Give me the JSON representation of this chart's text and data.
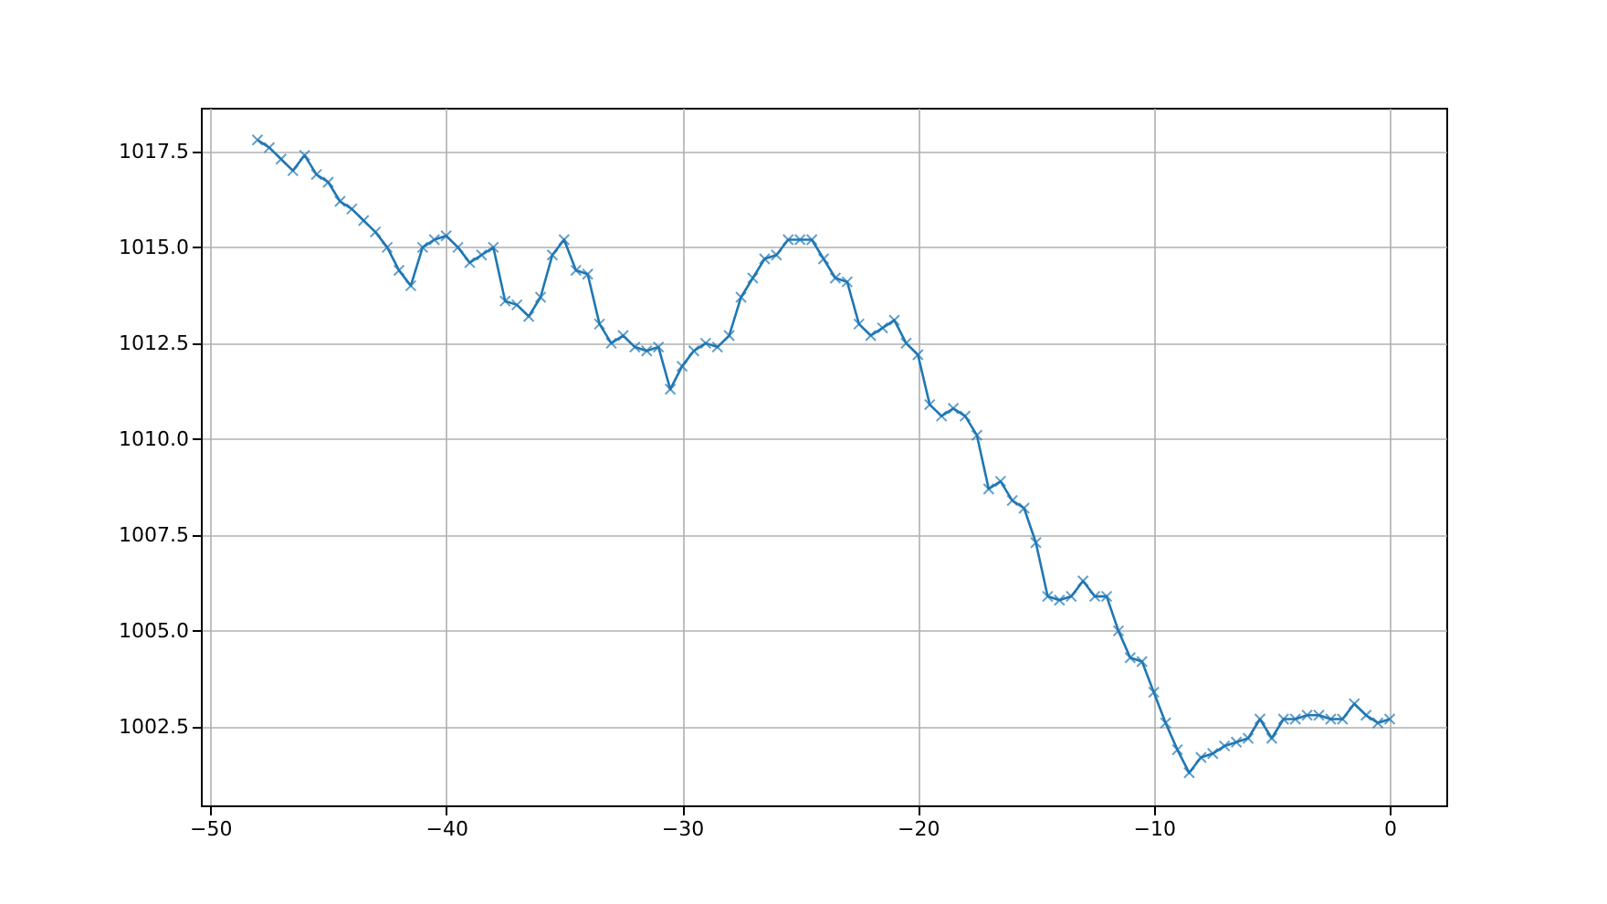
{
  "chart_data": {
    "type": "line",
    "xlim": [
      -50.4,
      2.4
    ],
    "ylim": [
      1000.45,
      1018.64
    ],
    "xticks": [
      -50,
      -40,
      -30,
      -20,
      -10,
      0
    ],
    "yticks": [
      {
        "value": 1002.5,
        "label": "1002.5"
      },
      {
        "value": 1005,
        "label": "1005.0"
      },
      {
        "value": 1007.5,
        "label": "1007.5"
      },
      {
        "value": 1010,
        "label": "1010.0"
      },
      {
        "value": 1012.5,
        "label": "1012.5"
      },
      {
        "value": 1015,
        "label": "1015.0"
      },
      {
        "value": 1017.5,
        "label": "1017.5"
      }
    ],
    "grid": true,
    "marker": "cross",
    "line_style": "solid",
    "x": [
      -48,
      -47.5,
      -47,
      -46.5,
      -46,
      -45.5,
      -45,
      -44.5,
      -44,
      -43.5,
      -43,
      -42.5,
      -42,
      -41.5,
      -41,
      -40.5,
      -40,
      -39.5,
      -39,
      -38.5,
      -38,
      -37.5,
      -37,
      -36.5,
      -36,
      -35.5,
      -35,
      -34.5,
      -34,
      -33.5,
      -33,
      -32.5,
      -32,
      -31.5,
      -31,
      -30.5,
      -30,
      -29.5,
      -29,
      -28.5,
      -28,
      -27.5,
      -27,
      -26.5,
      -26,
      -25.5,
      -25,
      -24.5,
      -24,
      -23.5,
      -23,
      -22.5,
      -22,
      -21.5,
      -21,
      -20.5,
      -20,
      -19.5,
      -19,
      -18.5,
      -18,
      -17.5,
      -17,
      -16.5,
      -16,
      -15.5,
      -15,
      -14.5,
      -14,
      -13.5,
      -13,
      -12.5,
      -12,
      -11.5,
      -11,
      -10.5,
      -10,
      -9.5,
      -9,
      -8.5,
      -8,
      -7.5,
      -7,
      -6.5,
      -6,
      -5.5,
      -5,
      -4.5,
      -4,
      -3.5,
      -3,
      -2.5,
      -2,
      -1.5,
      -1,
      -0.5,
      0
    ],
    "series": [
      {
        "color": "#1f77b4",
        "values": [
          1017.8,
          1017.6,
          1017.3,
          1017.0,
          1017.4,
          1016.9,
          1016.7,
          1016.2,
          1016.0,
          1015.7,
          1015.4,
          1015.0,
          1014.4,
          1014.0,
          1015.0,
          1015.2,
          1015.3,
          1015.0,
          1014.6,
          1014.8,
          1015.0,
          1013.6,
          1013.5,
          1013.2,
          1013.7,
          1014.8,
          1015.2,
          1014.4,
          1014.3,
          1013.0,
          1012.5,
          1012.7,
          1012.4,
          1012.3,
          1012.4,
          1011.3,
          1011.9,
          1012.3,
          1012.5,
          1012.4,
          1012.7,
          1013.7,
          1014.2,
          1014.7,
          1014.8,
          1015.2,
          1015.2,
          1015.2,
          1014.7,
          1014.2,
          1014.1,
          1013.0,
          1012.7,
          1012.9,
          1013.1,
          1012.5,
          1012.2,
          1010.9,
          1010.6,
          1010.8,
          1010.6,
          1010.1,
          1008.7,
          1008.9,
          1008.4,
          1008.2,
          1007.3,
          1005.9,
          1005.8,
          1005.9,
          1006.3,
          1005.9,
          1005.9,
          1005.0,
          1004.3,
          1004.2,
          1003.4,
          1002.6,
          1001.9,
          1001.3,
          1001.7,
          1001.8,
          1002.0,
          1002.1,
          1002.2,
          1002.7,
          1002.2,
          1002.7,
          1002.7,
          1002.8,
          1002.8,
          1002.7,
          1002.7,
          1003.1,
          1002.8,
          1002.6,
          1002.7
        ]
      }
    ]
  }
}
